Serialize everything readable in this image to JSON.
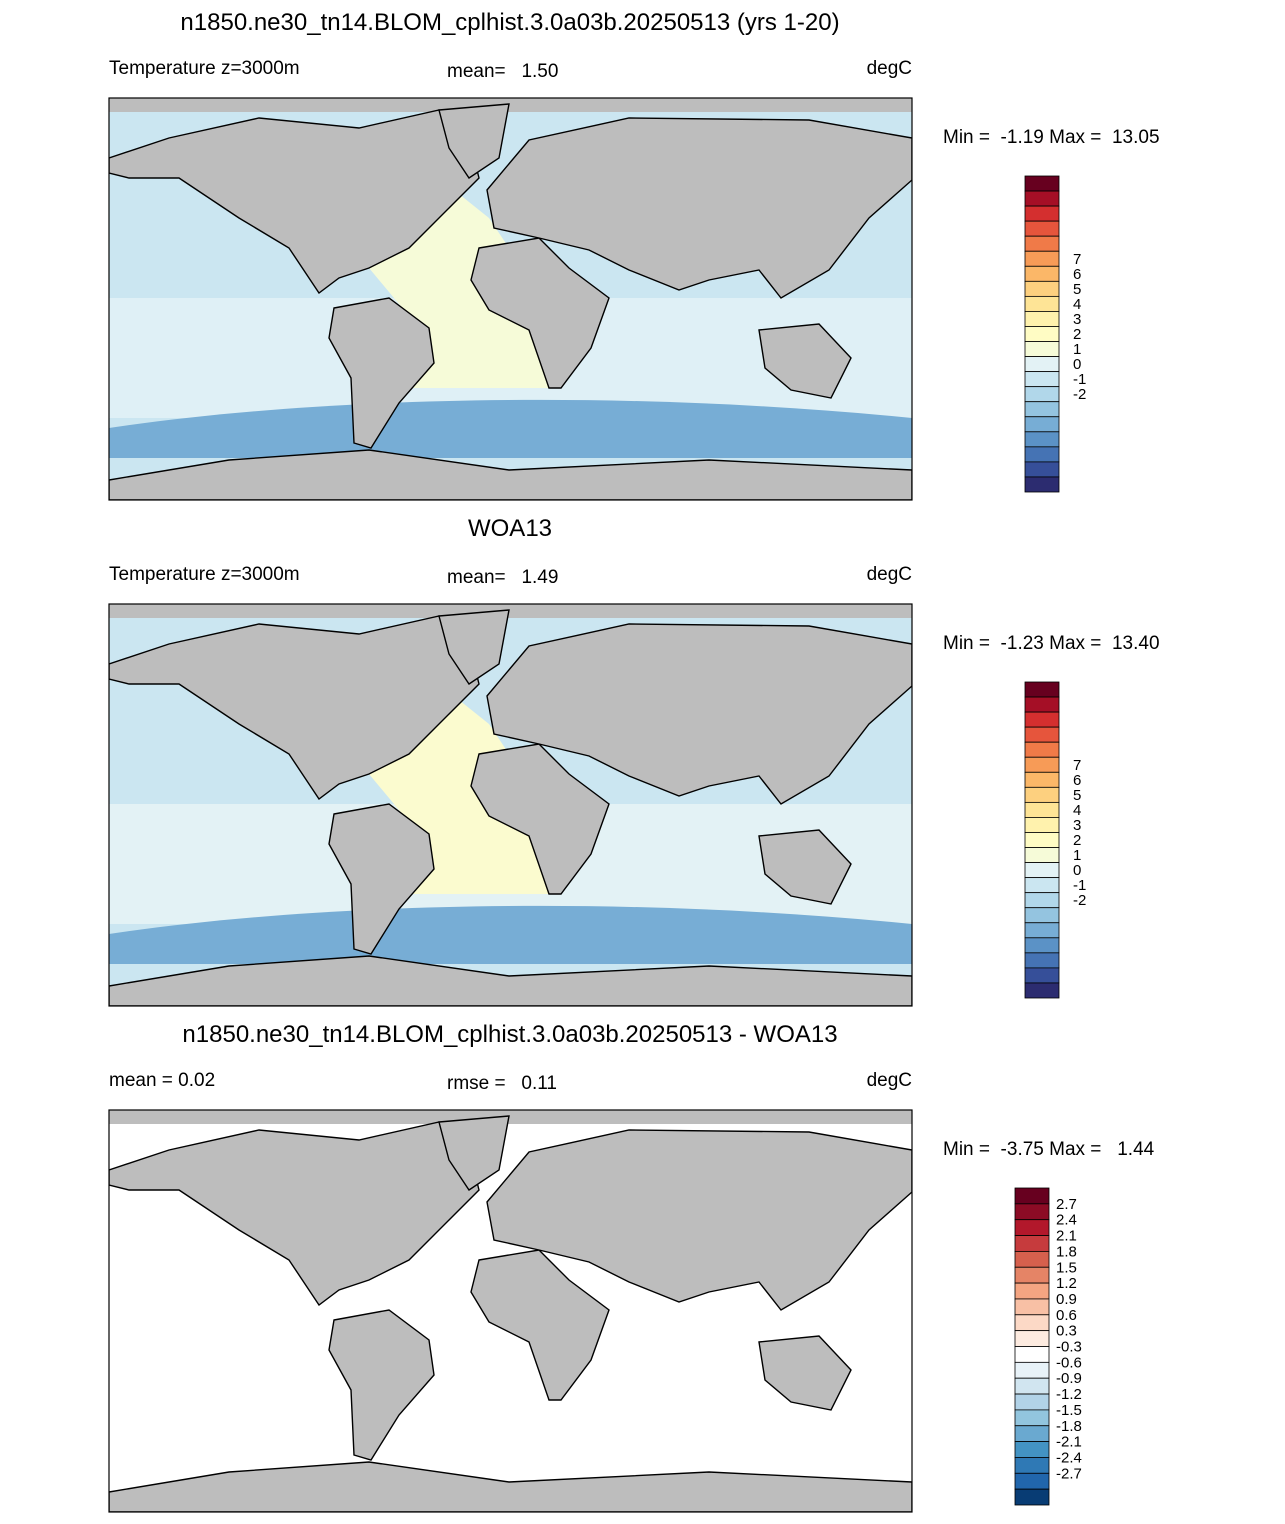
{
  "panels": [
    {
      "title": "n1850.ne30_tn14.BLOM_cplhist.3.0a03b.20250513 (yrs 1-20)",
      "left_label": "Temperature z=3000m",
      "center_label": "mean=   1.50",
      "right_label": "degC",
      "min_max": "Min =  -1.19 Max =  13.05",
      "colorbar": {
        "labels": [
          "7",
          "6",
          "5",
          "4",
          "3",
          "2",
          "1",
          "0",
          "-1",
          "-2"
        ],
        "colors": [
          "#67001f",
          "#a50f26",
          "#d42f2f",
          "#e6553c",
          "#f07a48",
          "#f79b57",
          "#fbb768",
          "#fdd07f",
          "#fee496",
          "#fff2ad",
          "#fffcc4",
          "#f6fbd8",
          "#e3f2f5",
          "#cbe6f1",
          "#b1d7ea",
          "#94c4e0",
          "#77add5",
          "#5b92c6",
          "#4573b4",
          "#364f99",
          "#2c2c70"
        ]
      }
    },
    {
      "title": "WOA13",
      "left_label": "Temperature z=3000m",
      "center_label": "mean=   1.49",
      "right_label": "degC",
      "min_max": "Min =  -1.23 Max =  13.40",
      "colorbar": {
        "labels": [
          "7",
          "6",
          "5",
          "4",
          "3",
          "2",
          "1",
          "0",
          "-1",
          "-2"
        ],
        "colors": [
          "#67001f",
          "#a50f26",
          "#d42f2f",
          "#e6553c",
          "#f07a48",
          "#f79b57",
          "#fbb768",
          "#fdd07f",
          "#fee496",
          "#fff2ad",
          "#fffcc4",
          "#f6fbd8",
          "#e3f2f5",
          "#cbe6f1",
          "#b1d7ea",
          "#94c4e0",
          "#77add5",
          "#5b92c6",
          "#4573b4",
          "#364f99",
          "#2c2c70"
        ]
      }
    },
    {
      "title": "n1850.ne30_tn14.BLOM_cplhist.3.0a03b.20250513 - WOA13",
      "left_label": "mean =   0.02",
      "center_label": "rmse =   0.11",
      "right_label": "degC",
      "min_max": "Min =  -3.75 Max =   1.44",
      "colorbar": {
        "labels": [
          "2.7",
          "2.4",
          "2.1",
          "1.8",
          "1.5",
          "1.2",
          "0.9",
          "0.6",
          "0.3",
          "-0.3",
          "-0.6",
          "-0.9",
          "-1.2",
          "-1.5",
          "-1.8",
          "-2.1",
          "-2.4",
          "-2.7"
        ],
        "colors": [
          "#67001f",
          "#8c0b25",
          "#b2182b",
          "#c63b3d",
          "#d6604d",
          "#e58466",
          "#f4a582",
          "#f8c0a5",
          "#fcd9c6",
          "#fdebe0",
          "#ffffff",
          "#e8f2f8",
          "#d1e5f0",
          "#b2d3e8",
          "#92c5de",
          "#6aa9d0",
          "#4393c3",
          "#2f79b5",
          "#2166ac",
          "#083c74"
        ]
      }
    }
  ]
}
